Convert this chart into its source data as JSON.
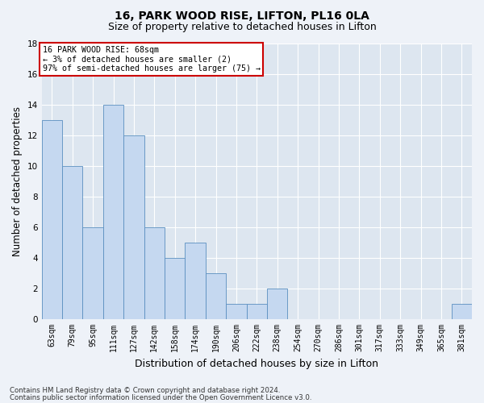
{
  "title_line1": "16, PARK WOOD RISE, LIFTON, PL16 0LA",
  "title_line2": "Size of property relative to detached houses in Lifton",
  "xlabel": "Distribution of detached houses by size in Lifton",
  "ylabel": "Number of detached properties",
  "categories": [
    "63sqm",
    "79sqm",
    "95sqm",
    "111sqm",
    "127sqm",
    "142sqm",
    "158sqm",
    "174sqm",
    "190sqm",
    "206sqm",
    "222sqm",
    "238sqm",
    "254sqm",
    "270sqm",
    "286sqm",
    "301sqm",
    "317sqm",
    "333sqm",
    "349sqm",
    "365sqm",
    "381sqm"
  ],
  "values": [
    13,
    10,
    6,
    14,
    12,
    6,
    4,
    5,
    3,
    1,
    1,
    2,
    0,
    0,
    0,
    0,
    0,
    0,
    0,
    0,
    1
  ],
  "bar_color": "#c5d8f0",
  "bar_edge_color": "#5a8fc0",
  "ylim": [
    0,
    18
  ],
  "yticks": [
    0,
    2,
    4,
    6,
    8,
    10,
    12,
    14,
    16,
    18
  ],
  "annotation_text": "16 PARK WOOD RISE: 68sqm\n← 3% of detached houses are smaller (2)\n97% of semi-detached houses are larger (75) →",
  "annotation_box_color": "#ffffff",
  "annotation_box_edge": "#cc0000",
  "footnote_line1": "Contains HM Land Registry data © Crown copyright and database right 2024.",
  "footnote_line2": "Contains public sector information licensed under the Open Government Licence v3.0.",
  "bg_color": "#eef2f8",
  "plot_bg_color": "#dde6f0",
  "grid_color": "#ffffff",
  "title_fontsize": 10,
  "subtitle_fontsize": 9,
  "tick_fontsize": 7,
  "ylabel_fontsize": 8.5,
  "xlabel_fontsize": 9
}
